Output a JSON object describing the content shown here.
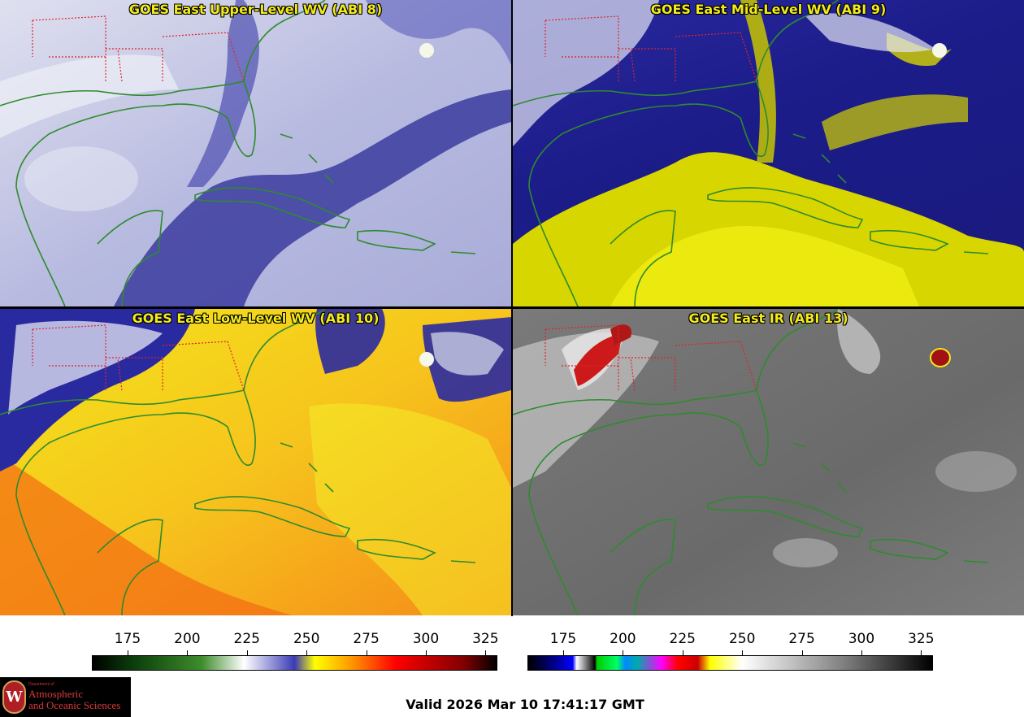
{
  "panels": [
    {
      "id": "upper",
      "title": "GOES East Upper-Level WV (ABI 8)"
    },
    {
      "id": "mid",
      "title": "GOES East Mid-Level WV (ABI 9)"
    },
    {
      "id": "low",
      "title": "GOES East Low-Level WV (ABI 10)"
    },
    {
      "id": "ir",
      "title": "GOES East IR (ABI 13)"
    }
  ],
  "colorbars": [
    {
      "id": "wv",
      "ticks": [
        "175",
        "200",
        "225",
        "250",
        "275",
        "300",
        "325"
      ]
    },
    {
      "id": "ir",
      "ticks": [
        "175",
        "200",
        "225",
        "250",
        "275",
        "300",
        "325"
      ]
    }
  ],
  "colorbar_range": [
    160,
    330
  ],
  "footer": {
    "valid_text": "Valid 2026 Mar 10 17:41:17 GMT"
  },
  "logo": {
    "seal_letter": "W",
    "dept_text": "Department of",
    "line1": "Atmospheric",
    "line2": "and Oceanic Sciences"
  },
  "colors": {
    "coastline": "#2e8b2e",
    "state_border": "#e0242a",
    "title_text": "#f2ea1a"
  }
}
